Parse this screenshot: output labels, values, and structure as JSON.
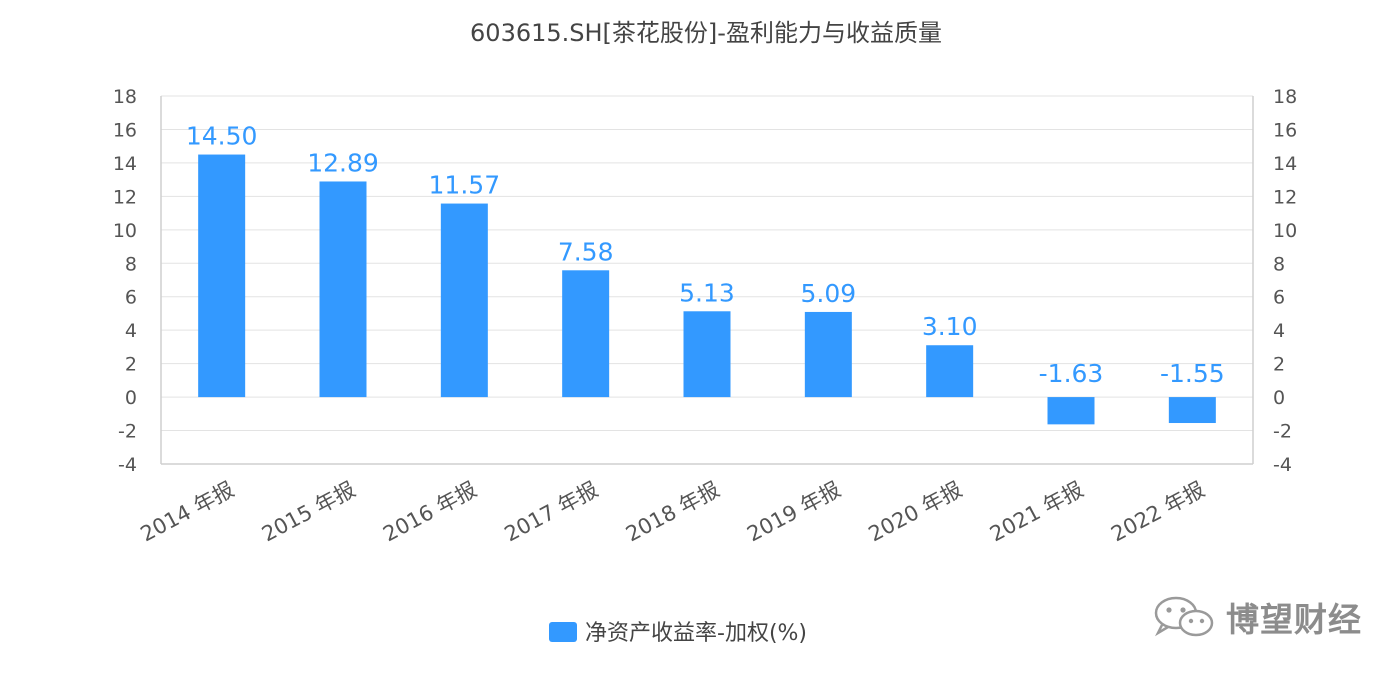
{
  "chart_data": {
    "type": "bar",
    "title": "603615.SH[茶花股份]-盈利能力与收益质量",
    "categories": [
      "2014 年报",
      "2015 年报",
      "2016 年报",
      "2017 年报",
      "2018 年报",
      "2019 年报",
      "2020 年报",
      "2021 年报",
      "2022 年报"
    ],
    "series": [
      {
        "name": "净资产收益率-加权(%)",
        "values": [
          14.5,
          12.89,
          11.57,
          7.58,
          5.13,
          5.09,
          3.1,
          -1.63,
          -1.55
        ],
        "labels": [
          "14.50",
          "12.89",
          "11.57",
          "7.58",
          "5.13",
          "5.09",
          "3.10",
          "-1.63",
          "-1.55"
        ]
      }
    ],
    "ylim": [
      -4,
      18
    ],
    "yticks": [
      "-4",
      "-2",
      "0",
      "2",
      "4",
      "6",
      "8",
      "10",
      "12",
      "14",
      "16",
      "18"
    ],
    "y2ticks": [
      "-4",
      "-2",
      "0",
      "2",
      "4",
      "6",
      "8",
      "10",
      "12",
      "14",
      "16",
      "18"
    ],
    "grid": true,
    "legend_position": "bottom-center",
    "bar_color": "#3399ff",
    "label_color": "#3399ff",
    "axis_text_color": "#555555"
  },
  "watermark": {
    "text": "博望财经",
    "icon": "wechat-icon"
  }
}
